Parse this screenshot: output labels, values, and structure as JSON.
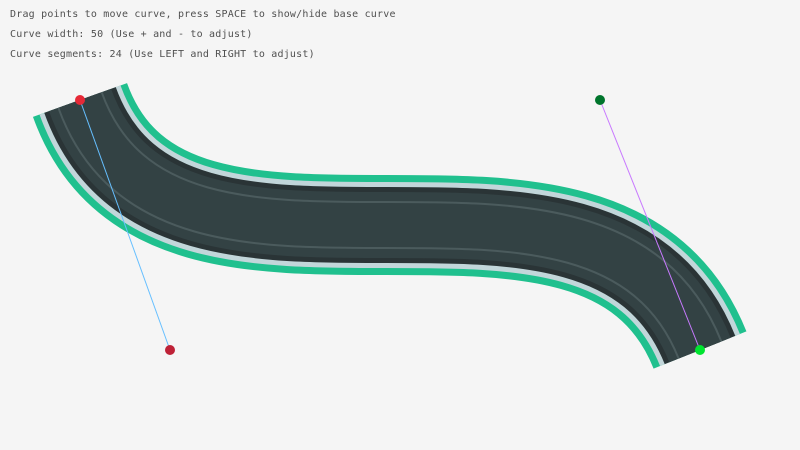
{
  "instructions": [
    "Drag points to move curve, press SPACE to show/hide base curve",
    "Curve width: 50 (Use + and - to adjust)",
    "Curve segments: 24 (Use LEFT and RIGHT to adjust)"
  ],
  "curve": {
    "width": 50,
    "segments": 24,
    "start_point": [
      80,
      100
    ],
    "start_control": [
      170,
      350
    ],
    "end_control": [
      600,
      100
    ],
    "end_point": [
      700,
      350
    ]
  },
  "colors": {
    "border": "#20c08e",
    "shoulder": "#c2d6da",
    "edge": "#2a3436",
    "asphalt": "#334244",
    "lane_line": "#4b5b5d",
    "start_handle_line": "#66bfff",
    "end_handle_line": "#c87aff",
    "start_point": "#e62937",
    "start_control": "#be2137",
    "end_control": "#00752c",
    "end_point": "#00e430"
  }
}
